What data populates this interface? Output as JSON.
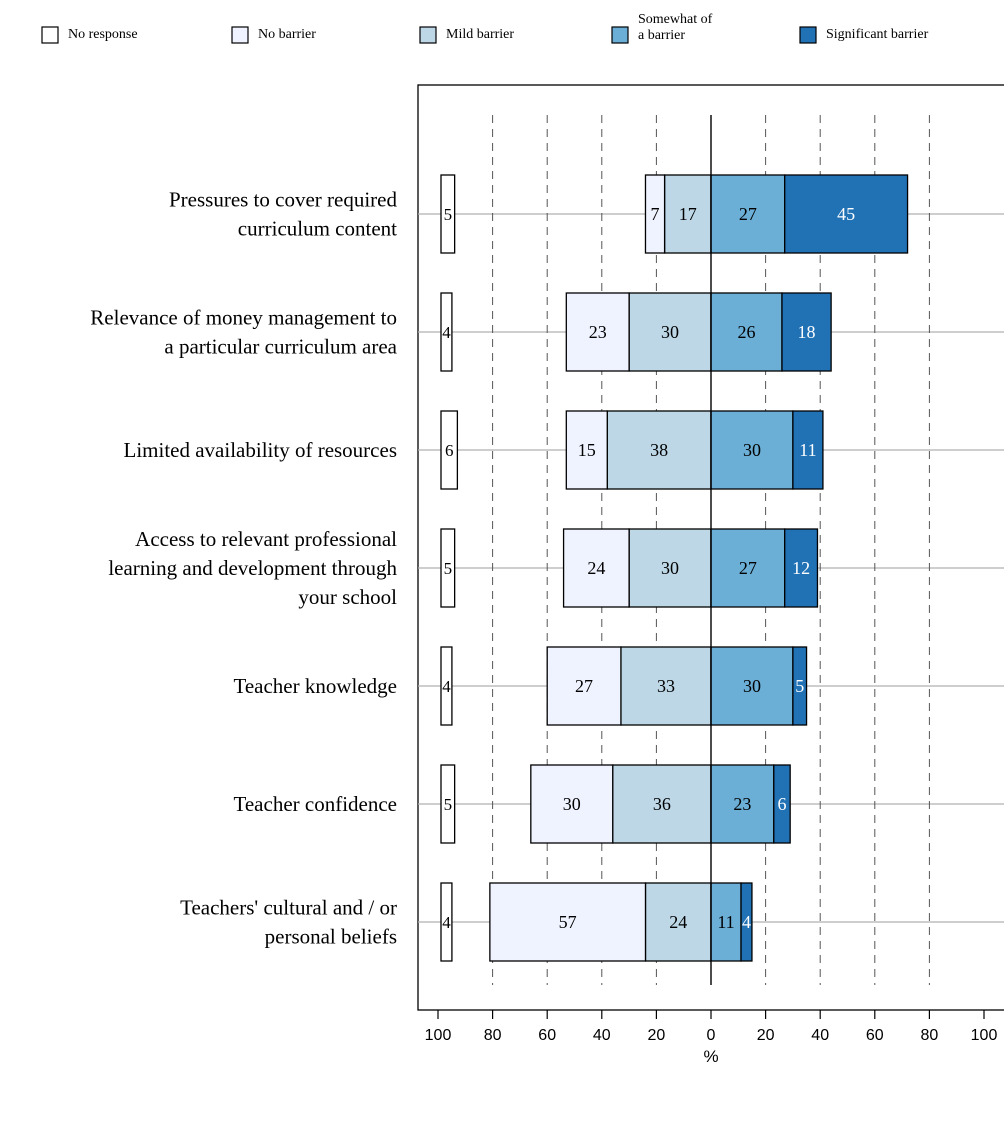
{
  "legend": [
    {
      "label": "No response",
      "color": "#ffffff"
    },
    {
      "label": "No barrier",
      "color": "#eff3ff"
    },
    {
      "label": "Mild barrier",
      "color": "#bdd7e7"
    },
    {
      "label": "Somewhat of a barrier",
      "lines": [
        "Somewhat of",
        "a barrier"
      ],
      "color": "#6baed6"
    },
    {
      "label": "Significant barrier",
      "color": "#2171b5"
    }
  ],
  "chart_data": {
    "type": "bar",
    "orientation": "horizontal-diverging",
    "xlabel": "%",
    "x_ticks": [
      "100",
      "80",
      "60",
      "40",
      "20",
      "0",
      "20",
      "40",
      "60",
      "80",
      "100"
    ],
    "xlim": [
      -100,
      100
    ],
    "grid": "vertical dashed",
    "legend_position": "top",
    "categories": [
      {
        "label": "Pressures to cover required curriculum content",
        "lines": [
          "Pressures to cover required",
          "curriculum content"
        ]
      },
      {
        "label": "Relevance of money management to a particular curriculum area",
        "lines": [
          "Relevance of money management to",
          "a particular curriculum area"
        ]
      },
      {
        "label": "Limited availability of resources",
        "lines": [
          "Limited availability of resources"
        ]
      },
      {
        "label": "Access to relevant professional learning and development through your school",
        "lines": [
          "Access to relevant professional",
          "learning and development through",
          "your school"
        ]
      },
      {
        "label": "Teacher knowledge",
        "lines": [
          "Teacher knowledge"
        ]
      },
      {
        "label": "Teacher confidence",
        "lines": [
          "Teacher confidence"
        ]
      },
      {
        "label": "Teachers' cultural and / or personal beliefs",
        "lines": [
          "Teachers' cultural and / or",
          "personal beliefs"
        ]
      }
    ],
    "series": [
      {
        "name": "No response",
        "values": [
          5,
          4,
          6,
          5,
          4,
          5,
          4
        ]
      },
      {
        "name": "No barrier",
        "values": [
          7,
          23,
          15,
          24,
          27,
          30,
          57
        ]
      },
      {
        "name": "Mild barrier",
        "values": [
          17,
          30,
          38,
          30,
          33,
          36,
          24
        ]
      },
      {
        "name": "Somewhat of a barrier",
        "values": [
          27,
          26,
          30,
          27,
          30,
          23,
          11
        ]
      },
      {
        "name": "Significant barrier",
        "values": [
          45,
          18,
          11,
          12,
          5,
          6,
          4
        ]
      }
    ]
  }
}
